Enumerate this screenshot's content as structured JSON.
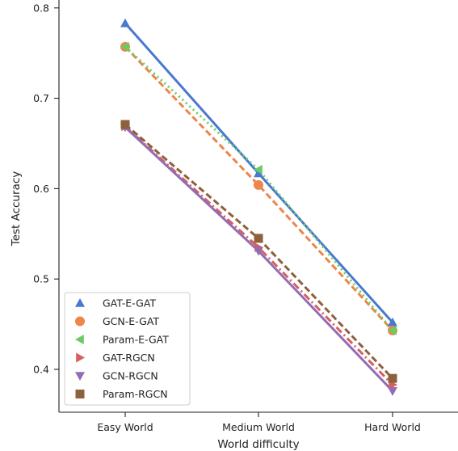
{
  "chart_data": {
    "type": "line",
    "title": "",
    "xlabel": "World difficulty",
    "ylabel": "Test Accuracy",
    "categories": [
      "Easy World",
      "Medium World",
      "Hard World"
    ],
    "ylim": [
      0.35,
      0.81
    ],
    "yticks": [
      0.4,
      0.5,
      0.6,
      0.7,
      0.8
    ],
    "ytick_labels": [
      "0.4",
      "0.5",
      "0.6",
      "0.7",
      "0.8"
    ],
    "grid": false,
    "legend_position": "lower-left",
    "series": [
      {
        "name": "GAT-E-GAT",
        "values": [
          0.783,
          0.617,
          0.452
        ],
        "color": "#4878d0",
        "marker": "triangle-up",
        "line": "solid"
      },
      {
        "name": "GCN-E-GAT",
        "values": [
          0.757,
          0.604,
          0.443
        ],
        "color": "#ee854a",
        "marker": "circle",
        "line": "dashed"
      },
      {
        "name": "Param-E-GAT",
        "values": [
          0.757,
          0.621,
          0.443
        ],
        "color": "#6acc64",
        "marker": "triangle-left",
        "line": "dotted"
      },
      {
        "name": "GAT-RGCN",
        "values": [
          0.669,
          0.535,
          0.383
        ],
        "color": "#d65f5f",
        "marker": "triangle-right",
        "line": "dashdot"
      },
      {
        "name": "GCN-RGCN",
        "values": [
          0.668,
          0.531,
          0.376
        ],
        "color": "#956cb4",
        "marker": "triangle-down",
        "line": "solid"
      },
      {
        "name": "Param-RGCN",
        "values": [
          0.671,
          0.545,
          0.39
        ],
        "color": "#8c613c",
        "marker": "square",
        "line": "dashed"
      }
    ]
  }
}
